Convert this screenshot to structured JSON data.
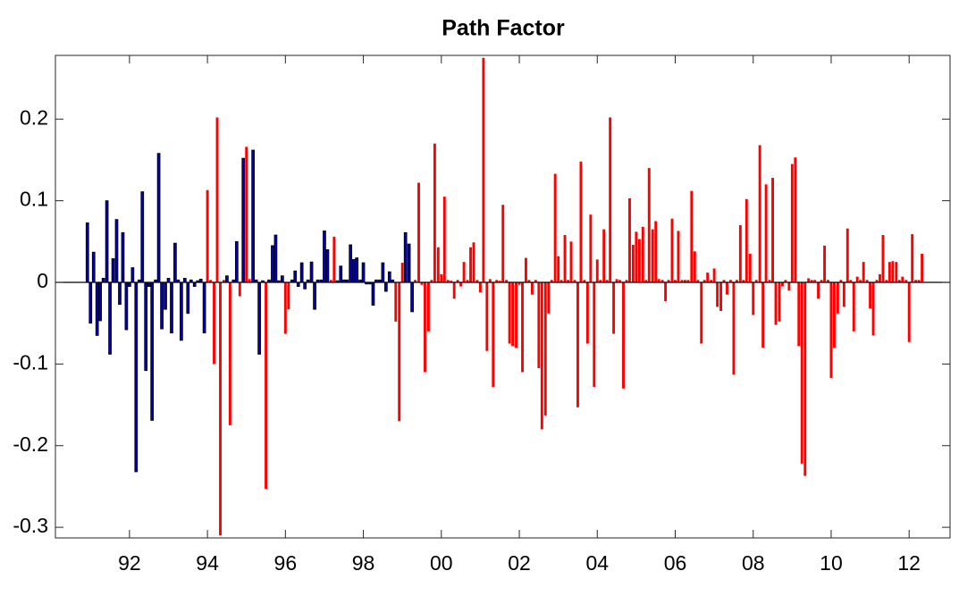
{
  "chart_data": {
    "type": "bar",
    "title": "Path Factor",
    "x": [
      1990.92,
      1991,
      1991.08,
      1991.17,
      1991.25,
      1991.33,
      1991.42,
      1991.5,
      1991.58,
      1991.67,
      1991.75,
      1991.83,
      1991.92,
      1992,
      1992.08,
      1992.17,
      1992.25,
      1992.33,
      1992.42,
      1992.5,
      1992.58,
      1992.67,
      1992.75,
      1992.83,
      1992.92,
      1993,
      1993.08,
      1993.17,
      1993.25,
      1993.33,
      1993.42,
      1993.5,
      1993.58,
      1993.67,
      1993.75,
      1993.83,
      1993.92,
      1994,
      1994.08,
      1994.17,
      1994.25,
      1994.33,
      1994.42,
      1994.5,
      1994.58,
      1994.67,
      1994.75,
      1994.83,
      1994.92,
      1995,
      1995.08,
      1995.17,
      1995.25,
      1995.33,
      1995.42,
      1995.5,
      1995.58,
      1995.67,
      1995.75,
      1995.83,
      1995.92,
      1996,
      1996.08,
      1996.17,
      1996.25,
      1996.33,
      1996.42,
      1996.5,
      1996.58,
      1996.67,
      1996.75,
      1996.83,
      1996.92,
      1997,
      1997.08,
      1997.17,
      1997.25,
      1997.33,
      1997.42,
      1997.5,
      1997.58,
      1997.67,
      1997.75,
      1997.83,
      1997.92,
      1998,
      1998.08,
      1998.17,
      1998.25,
      1998.33,
      1998.42,
      1998.5,
      1998.58,
      1998.67,
      1998.75,
      1998.83,
      1998.92,
      1999,
      1999.08,
      1999.17,
      1999.25,
      1999.33,
      1999.42,
      1999.5,
      1999.58,
      1999.67,
      1999.75,
      1999.83,
      1999.92,
      2000,
      2000.08,
      2000.17,
      2000.25,
      2000.33,
      2000.42,
      2000.5,
      2000.58,
      2000.67,
      2000.75,
      2000.83,
      2000.92,
      2001,
      2001.08,
      2001.17,
      2001.25,
      2001.33,
      2001.42,
      2001.5,
      2001.58,
      2001.67,
      2001.75,
      2001.83,
      2001.92,
      2002,
      2002.08,
      2002.17,
      2002.25,
      2002.33,
      2002.42,
      2002.5,
      2002.58,
      2002.67,
      2002.75,
      2002.83,
      2002.92,
      2003,
      2003.08,
      2003.17,
      2003.25,
      2003.33,
      2003.42,
      2003.5,
      2003.58,
      2003.67,
      2003.75,
      2003.83,
      2003.92,
      2004,
      2004.08,
      2004.17,
      2004.25,
      2004.33,
      2004.42,
      2004.5,
      2004.58,
      2004.67,
      2004.75,
      2004.83,
      2004.92,
      2005,
      2005.08,
      2005.17,
      2005.25,
      2005.33,
      2005.42,
      2005.5,
      2005.58,
      2005.67,
      2005.75,
      2005.83,
      2005.92,
      2006,
      2006.08,
      2006.17,
      2006.25,
      2006.33,
      2006.42,
      2006.5,
      2006.58,
      2006.67,
      2006.75,
      2006.83,
      2006.92,
      2007,
      2007.08,
      2007.17,
      2007.25,
      2007.33,
      2007.42,
      2007.5,
      2007.58,
      2007.67,
      2007.75,
      2007.83,
      2007.92,
      2008,
      2008.08,
      2008.17,
      2008.25,
      2008.33,
      2008.42,
      2008.5,
      2008.58,
      2008.67,
      2008.75,
      2008.83,
      2008.92,
      2009,
      2009.08,
      2009.17,
      2009.25,
      2009.33,
      2009.42,
      2009.5,
      2009.58,
      2009.67,
      2009.75,
      2009.83,
      2009.92,
      2010,
      2010.08,
      2010.17,
      2010.25,
      2010.33,
      2010.42,
      2010.5,
      2010.58,
      2010.67,
      2010.75,
      2010.83,
      2010.92,
      2011,
      2011.08,
      2011.17,
      2011.25,
      2011.33,
      2011.42,
      2011.5,
      2011.58,
      2011.67,
      2011.75,
      2011.83,
      2011.92,
      2012,
      2012.08,
      2012.17,
      2012.25,
      2012.33
    ],
    "series": [
      {
        "color": "#0000b4",
        "edgecolor": "#000000",
        "values": [
          0.073,
          -0.05,
          0.037,
          -0.065,
          -0.047,
          0.005,
          0.1,
          -0.088,
          0.029,
          0.077,
          -0.027,
          0.061,
          -0.058,
          -0.005,
          0.018,
          -0.232,
          0.003,
          0.111,
          -0.108,
          -0.005,
          -0.169,
          0.003,
          0.158,
          -0.057,
          -0.033,
          0.005,
          -0.062,
          0.048,
          0.003,
          -0.071,
          0.005,
          -0.038,
          0.003,
          -0.005,
          0.002,
          0.004,
          -0.062,
          null,
          null,
          null,
          null,
          null,
          null,
          0.008,
          null,
          0.003,
          0.05,
          null,
          0.152,
          null,
          null,
          0.162,
          0.003,
          -0.088,
          0.002,
          null,
          0.003,
          0.045,
          0.058,
          0.002,
          0.008,
          null,
          null,
          0.003,
          0.014,
          -0.005,
          0.024,
          -0.008,
          0.003,
          0.025,
          -0.033,
          0.003,
          0.003,
          0.063,
          0.04,
          null,
          null,
          0.002,
          0.02,
          0.003,
          0.003,
          0.046,
          0.028,
          0.03,
          0.003,
          0.024,
          -0.002,
          -0.002,
          -0.028,
          0.003,
          0.003,
          0.024,
          -0.011,
          0.013,
          0.003,
          null,
          null,
          null,
          0.061,
          0.047,
          -0.036,
          null,
          null,
          null,
          null,
          null,
          null,
          null,
          null,
          null,
          null,
          null,
          null,
          null,
          null,
          null,
          null,
          null,
          null,
          null,
          null,
          null,
          null,
          null,
          null,
          null,
          null,
          null,
          null,
          null,
          null,
          null,
          null,
          null,
          null,
          null,
          null,
          null,
          null,
          null,
          null,
          null,
          null,
          null,
          null,
          null,
          null,
          null,
          null,
          null,
          null,
          null,
          null,
          null,
          null,
          null,
          null,
          null,
          null,
          null,
          null,
          null,
          null,
          null,
          null,
          null,
          null,
          null,
          null,
          null,
          null,
          null,
          null,
          null,
          null,
          null,
          null,
          null,
          null,
          null,
          null,
          null,
          null,
          null,
          null,
          null,
          null,
          null,
          null,
          null,
          null,
          null,
          null,
          null,
          null,
          null,
          null,
          null,
          null,
          null,
          null,
          null,
          null,
          null,
          null,
          null,
          null,
          null,
          null,
          null,
          null,
          null,
          null,
          null,
          null,
          null,
          null,
          null,
          null,
          null,
          null,
          null,
          null,
          null,
          null,
          null,
          null,
          null,
          null,
          null,
          null,
          null,
          null,
          null,
          null,
          null,
          null,
          null,
          null,
          null,
          null,
          null,
          null,
          null,
          null,
          null,
          null,
          null,
          null,
          null,
          null,
          null,
          null,
          null,
          null,
          null,
          null,
          null
        ]
      },
      {
        "color": "#ff0000",
        "values": [
          null,
          null,
          null,
          null,
          null,
          null,
          null,
          null,
          null,
          null,
          null,
          null,
          null,
          null,
          null,
          null,
          null,
          null,
          null,
          null,
          null,
          null,
          null,
          null,
          null,
          null,
          null,
          null,
          null,
          null,
          null,
          null,
          null,
          null,
          null,
          null,
          null,
          0.113,
          0.003,
          -0.1,
          0.202,
          -0.31,
          0.003,
          null,
          -0.175,
          null,
          null,
          -0.017,
          null,
          0.166,
          0.004,
          null,
          null,
          null,
          null,
          -0.253,
          null,
          null,
          null,
          null,
          null,
          -0.063,
          -0.033,
          null,
          null,
          null,
          null,
          null,
          null,
          null,
          null,
          null,
          null,
          null,
          null,
          0.003,
          0.056,
          null,
          null,
          null,
          null,
          null,
          null,
          null,
          null,
          null,
          null,
          null,
          null,
          null,
          null,
          null,
          null,
          null,
          null,
          -0.048,
          -0.17,
          0.024,
          null,
          null,
          null,
          0.003,
          0.122,
          -0.003,
          -0.11,
          -0.06,
          0.003,
          0.17,
          0.043,
          0.01,
          0.105,
          0.003,
          0.002,
          -0.02,
          0.003,
          -0.005,
          0.025,
          0.003,
          0.043,
          0.049,
          0.003,
          -0.012,
          0.275,
          -0.084,
          0.004,
          -0.128,
          0.003,
          0.002,
          0.095,
          0.003,
          -0.075,
          -0.078,
          -0.08,
          -0.003,
          -0.11,
          0.03,
          0.003,
          -0.015,
          0.003,
          -0.105,
          -0.18,
          -0.163,
          -0.038,
          0.003,
          0.133,
          0.032,
          0.003,
          0.058,
          0.003,
          0.05,
          0.003,
          -0.153,
          0.148,
          0.003,
          -0.075,
          0.083,
          -0.128,
          0.028,
          0.003,
          0.065,
          0.003,
          0.202,
          -0.063,
          0.004,
          0.003,
          -0.13,
          0.003,
          0.103,
          0.046,
          0.062,
          0.053,
          0.068,
          0.003,
          0.14,
          0.065,
          0.075,
          0.004,
          0.003,
          -0.023,
          0.003,
          0.078,
          0.003,
          0.063,
          0.003,
          0.003,
          0.003,
          0.112,
          0.038,
          0.003,
          -0.075,
          0.003,
          0.012,
          0.003,
          0.017,
          -0.03,
          -0.035,
          0.003,
          -0.015,
          0.003,
          -0.113,
          0.003,
          0.07,
          0.003,
          0.102,
          0.035,
          -0.04,
          0.003,
          0.168,
          -0.08,
          0.12,
          0.003,
          0.128,
          -0.052,
          -0.048,
          -0.005,
          0.003,
          -0.01,
          0.145,
          0.153,
          -0.078,
          -0.222,
          -0.237,
          0.005,
          0.003,
          0.003,
          -0.02,
          0.003,
          0.045,
          0.003,
          -0.117,
          -0.08,
          -0.038,
          0.003,
          -0.03,
          0.066,
          0.003,
          -0.06,
          0.007,
          0.003,
          0.025,
          0.003,
          -0.032,
          -0.065,
          0.003,
          0.01,
          0.058,
          0.003,
          0.025,
          0.026,
          0.025,
          0.003,
          0.007,
          0.003,
          -0.073,
          0.059,
          0.003,
          0.003,
          0.035
        ]
      }
    ],
    "xlim": [
      1990.1,
      2013.05
    ],
    "xticks": [
      {
        "value": 1992,
        "label": "92"
      },
      {
        "value": 1994,
        "label": "94"
      },
      {
        "value": 1996,
        "label": "96"
      },
      {
        "value": 1998,
        "label": "98"
      },
      {
        "value": 2000,
        "label": "00"
      },
      {
        "value": 2002,
        "label": "02"
      },
      {
        "value": 2004,
        "label": "04"
      },
      {
        "value": 2006,
        "label": "06"
      },
      {
        "value": 2008,
        "label": "08"
      },
      {
        "value": 2010,
        "label": "10"
      },
      {
        "value": 2012,
        "label": "12"
      }
    ],
    "ylim": [
      -0.313,
      0.278
    ],
    "yticks": [
      -0.3,
      -0.2,
      -0.1,
      0,
      0.1,
      0.2
    ],
    "grid": false
  }
}
